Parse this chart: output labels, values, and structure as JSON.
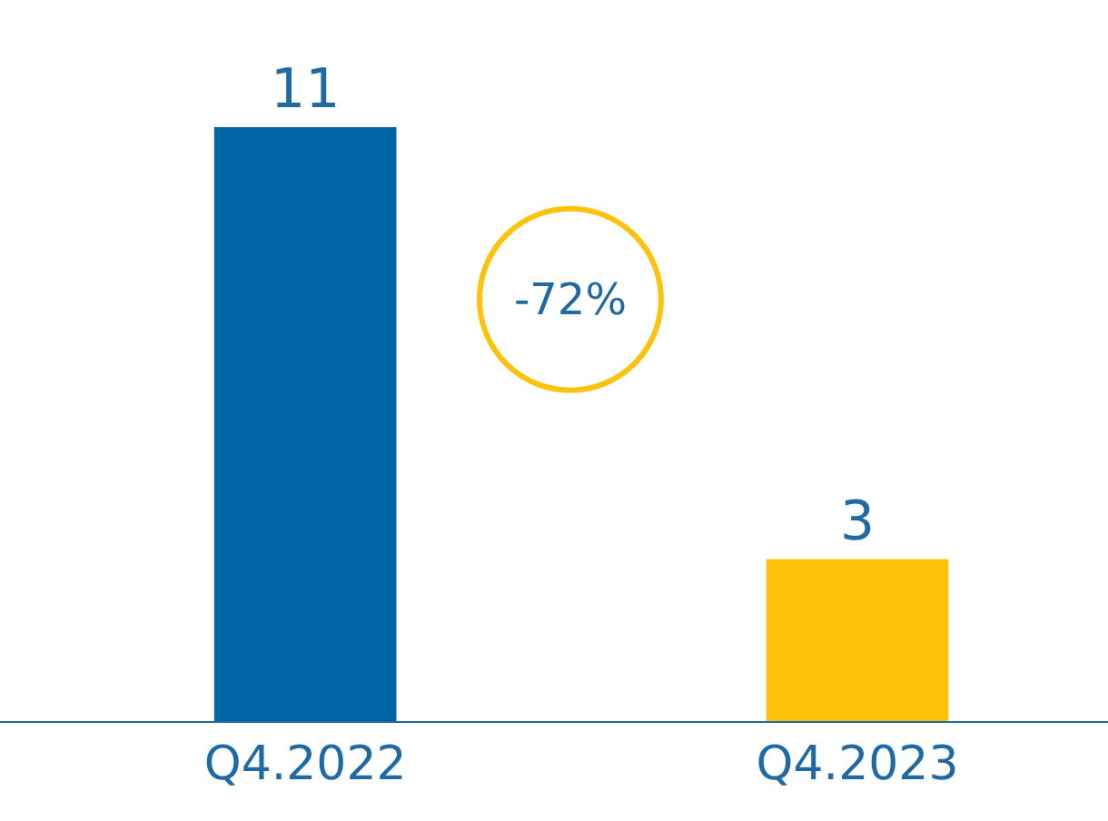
{
  "chart_data": {
    "type": "bar",
    "categories": [
      "Q4.2022",
      "Q4.2023"
    ],
    "values": [
      11,
      3
    ],
    "colors": [
      "#0064a5",
      "#fcc30a"
    ],
    "data_labels": true,
    "annotations": [
      "-72%"
    ]
  }
}
